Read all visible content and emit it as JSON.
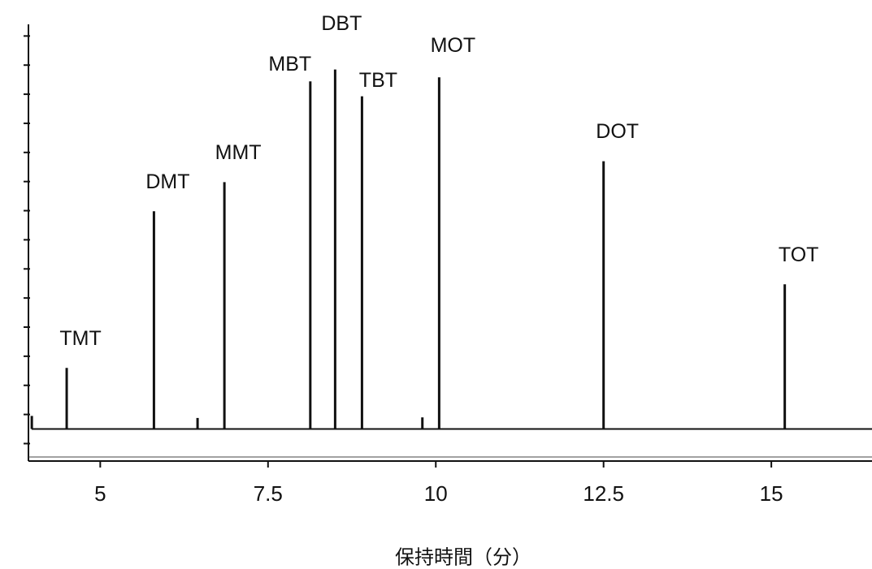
{
  "chart_data": {
    "type": "chromatogram",
    "x_axis_title": "保持時間（分）",
    "x": [
      3.98,
      4.5,
      5.8,
      6.45,
      6.85,
      8.13,
      8.5,
      8.9,
      9.8,
      10.05,
      12.5,
      15.2
    ],
    "values": [
      0.95,
      2.6,
      7.98,
      0.88,
      8.98,
      12.44,
      12.85,
      11.93,
      0.9,
      12.58,
      9.7,
      5.47
    ],
    "labels": [
      null,
      "TMT",
      "DMT",
      null,
      "MMT",
      "MBT",
      "DBT",
      "TBT",
      null,
      "MOT",
      "DOT",
      "TOT"
    ],
    "baseline": 0.5,
    "color": "#111111",
    "xlim": [
      3.93,
      16.5
    ],
    "xticks": [
      5,
      7.5,
      10,
      12.5,
      15
    ],
    "ylim": [
      -0.6,
      14.4
    ],
    "yticks": [
      0,
      1,
      2,
      3,
      4,
      5,
      6,
      7,
      8,
      9,
      10,
      11,
      12,
      13,
      14
    ]
  }
}
